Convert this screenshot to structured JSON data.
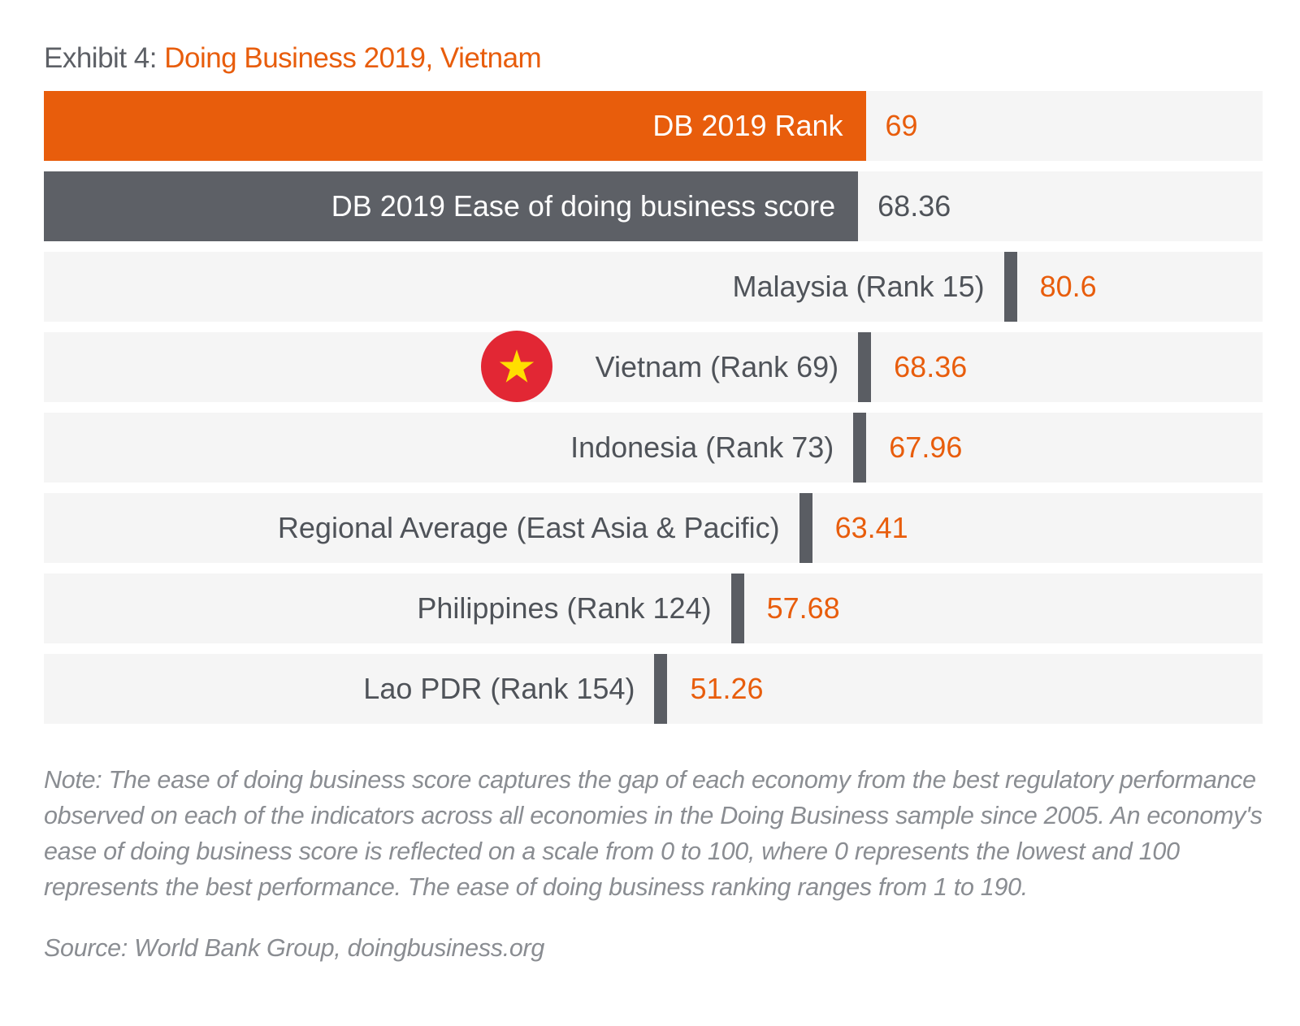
{
  "title": {
    "prefix": "Exhibit 4: ",
    "main": "Doing Business 2019, Vietnam"
  },
  "colors": {
    "accent": "#e85d0c",
    "dark": "#5d6066",
    "track": "#f5f5f5",
    "flag_red": "#e22734",
    "flag_star": "#ffde00"
  },
  "chart_data": {
    "type": "bar",
    "title": "Doing Business 2019, Vietnam",
    "xlim": [
      0,
      100
    ],
    "header_bars": [
      {
        "label": "DB 2019 Rank",
        "value": 69,
        "display": "69",
        "color": "#e85d0c",
        "value_color": "#e85d0c"
      },
      {
        "label": "DB 2019 Ease of doing business score",
        "value": 68.36,
        "display": "68.36",
        "color": "#5d6066",
        "value_color": "#4f5359"
      }
    ],
    "categories": [
      "Malaysia (Rank 15)",
      "Vietnam (Rank 69)",
      "Indonesia (Rank 73)",
      "Regional Average (East Asia & Pacific)",
      "Philippines (Rank 124)",
      "Lao PDR (Rank 154)"
    ],
    "values": [
      80.6,
      68.36,
      67.96,
      63.41,
      57.68,
      51.26
    ],
    "value_labels": [
      "80.6",
      "68.36",
      "67.96",
      "63.41",
      "57.68",
      "51.26"
    ],
    "flag_icon": "vietnam-flag-icon",
    "flag_category_index": 1
  },
  "note": "Note: The ease of doing business score captures the gap of each economy from the best regulatory performance observed on each of the indicators across all economies in the Doing Business sample since 2005. An economy's ease of doing business score is reflected on a scale from 0 to 100, where 0 represents the lowest and 100 represents the best performance. The ease of doing business ranking ranges from 1 to 190.",
  "source": "Source: World Bank Group, doingbusiness.org"
}
